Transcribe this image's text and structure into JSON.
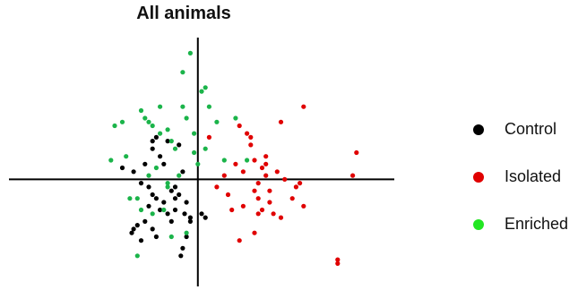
{
  "chart_data": {
    "type": "scatter",
    "title": "All animals",
    "xlabel": "",
    "ylabel": "",
    "grid": false,
    "axes": "centered-crosshair",
    "legend_position": "right",
    "series": [
      {
        "name": "Control",
        "color": "#000000",
        "points": [
          [
            -2.0,
            0.3
          ],
          [
            -1.7,
            0.2
          ],
          [
            -1.4,
            0.4
          ],
          [
            -1.5,
            -0.1
          ],
          [
            -1.3,
            -0.2
          ],
          [
            -1.2,
            -0.4
          ],
          [
            -1.3,
            -0.7
          ],
          [
            -1.1,
            -0.5
          ],
          [
            -1.0,
            -0.8
          ],
          [
            -0.9,
            -0.6
          ],
          [
            -0.8,
            -0.9
          ],
          [
            -0.7,
            -1.1
          ],
          [
            -0.6,
            -0.8
          ],
          [
            -1.6,
            -1.2
          ],
          [
            -1.4,
            -1.1
          ],
          [
            -1.2,
            -1.3
          ],
          [
            -1.1,
            -1.5
          ],
          [
            -1.2,
            1.0
          ],
          [
            -1.1,
            1.1
          ],
          [
            -1.2,
            0.8
          ],
          [
            -1.0,
            0.6
          ],
          [
            -0.9,
            0.4
          ],
          [
            -0.8,
            1.0
          ],
          [
            -0.6,
            -0.2
          ],
          [
            -0.5,
            -0.4
          ],
          [
            -0.4,
            0.2
          ],
          [
            -0.3,
            -0.6
          ],
          [
            -0.35,
            -0.9
          ],
          [
            -0.2,
            -1.0
          ],
          [
            -0.3,
            -1.5
          ],
          [
            -0.4,
            -1.8
          ],
          [
            -0.45,
            -2.0
          ],
          [
            -0.2,
            -1.1
          ],
          [
            0.1,
            -0.9
          ],
          [
            0.2,
            -1.0
          ],
          [
            -1.7,
            -1.3
          ],
          [
            -1.75,
            -1.4
          ],
          [
            -1.5,
            -1.6
          ],
          [
            -0.7,
            -0.3
          ],
          [
            -0.6,
            -0.5
          ],
          [
            -0.5,
            0.9
          ]
        ]
      },
      {
        "name": "Isolated",
        "color": "#e00000",
        "points": [
          [
            0.3,
            1.1
          ],
          [
            0.5,
            -0.2
          ],
          [
            0.7,
            0.1
          ],
          [
            0.8,
            -0.4
          ],
          [
            0.9,
            -0.8
          ],
          [
            1.0,
            0.4
          ],
          [
            1.1,
            1.4
          ],
          [
            1.2,
            0.2
          ],
          [
            1.2,
            -0.7
          ],
          [
            1.3,
            1.2
          ],
          [
            1.4,
            0.9
          ],
          [
            1.4,
            1.1
          ],
          [
            1.5,
            0.5
          ],
          [
            1.5,
            -0.3
          ],
          [
            1.6,
            -0.1
          ],
          [
            1.6,
            -0.5
          ],
          [
            1.7,
            0.3
          ],
          [
            1.7,
            -0.8
          ],
          [
            1.8,
            0.6
          ],
          [
            1.8,
            0.1
          ],
          [
            1.9,
            -0.3
          ],
          [
            1.9,
            -0.6
          ],
          [
            2.0,
            -0.9
          ],
          [
            2.1,
            0.2
          ],
          [
            2.2,
            -1.0
          ],
          [
            2.3,
            0.0
          ],
          [
            2.5,
            -0.5
          ],
          [
            2.6,
            -0.2
          ],
          [
            2.7,
            -0.1
          ],
          [
            2.8,
            -0.7
          ],
          [
            1.1,
            -1.6
          ],
          [
            1.5,
            -1.4
          ],
          [
            3.7,
            -2.1
          ],
          [
            3.7,
            -2.2
          ],
          [
            4.1,
            0.1
          ],
          [
            4.2,
            0.7
          ],
          [
            2.8,
            1.9
          ],
          [
            2.2,
            1.5
          ],
          [
            1.8,
            0.4
          ],
          [
            1.6,
            -0.9
          ]
        ]
      },
      {
        "name": "Enriched",
        "color": "#1bb44a",
        "points": [
          [
            -0.2,
            3.3
          ],
          [
            -1.0,
            1.9
          ],
          [
            -2.0,
            1.5
          ],
          [
            -2.2,
            1.4
          ],
          [
            -1.5,
            1.8
          ],
          [
            -1.4,
            1.6
          ],
          [
            -1.3,
            1.5
          ],
          [
            -1.2,
            1.4
          ],
          [
            -1.0,
            1.2
          ],
          [
            -0.8,
            1.3
          ],
          [
            -0.7,
            1.0
          ],
          [
            -0.6,
            0.8
          ],
          [
            -0.4,
            1.9
          ],
          [
            -0.3,
            1.6
          ],
          [
            -0.1,
            1.2
          ],
          [
            0.1,
            2.3
          ],
          [
            0.2,
            2.4
          ],
          [
            0.3,
            1.9
          ],
          [
            0.5,
            1.5
          ],
          [
            0.7,
            0.5
          ],
          [
            1.0,
            1.6
          ],
          [
            -0.5,
            0.1
          ],
          [
            -0.8,
            -0.1
          ],
          [
            -1.3,
            0.1
          ],
          [
            -1.6,
            -0.5
          ],
          [
            -1.5,
            -0.8
          ],
          [
            -1.8,
            -0.5
          ],
          [
            -1.2,
            -0.9
          ],
          [
            -0.8,
            -0.2
          ],
          [
            -0.7,
            -1.5
          ],
          [
            -1.6,
            -2.0
          ],
          [
            -0.3,
            -1.4
          ],
          [
            0.0,
            0.4
          ],
          [
            1.3,
            0.5
          ],
          [
            0.2,
            0.8
          ],
          [
            -1.9,
            0.6
          ],
          [
            -2.3,
            0.5
          ],
          [
            -0.4,
            2.8
          ],
          [
            -0.1,
            0.7
          ],
          [
            -1.1,
            0.3
          ],
          [
            -0.9,
            -0.8
          ]
        ]
      }
    ],
    "xlim": [
      -5,
      5.2
    ],
    "ylim": [
      -2.8,
      3.8
    ]
  }
}
